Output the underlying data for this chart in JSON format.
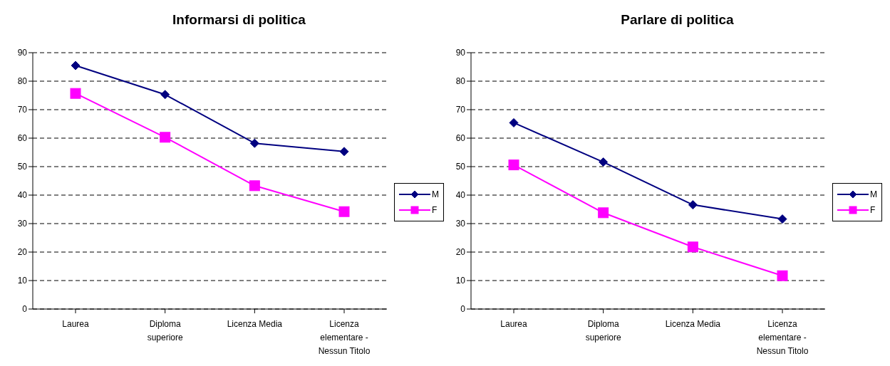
{
  "chart_data": [
    {
      "type": "line",
      "title": "Informarsi di politica",
      "categories": [
        "Laurea",
        "Diploma superiore",
        "Licenza Media",
        "Licenza elementare - Nessun Titolo"
      ],
      "series": [
        {
          "name": "M",
          "color": "#000080",
          "marker": "diamond",
          "values": [
            85.5,
            75.3,
            58.2,
            55.3
          ]
        },
        {
          "name": "F",
          "color": "#ff00ff",
          "marker": "square",
          "values": [
            75.7,
            60.3,
            43.3,
            34.2
          ]
        }
      ],
      "ylim": [
        0,
        90
      ],
      "yticks": [
        0,
        10,
        20,
        30,
        40,
        50,
        60,
        70,
        80,
        90
      ],
      "grid": "y",
      "legend": "right"
    },
    {
      "type": "line",
      "title": "Parlare di politica",
      "categories": [
        "Laurea",
        "Diploma superiore",
        "Licenza Media",
        "Licenza elementare - Nessun Titolo"
      ],
      "series": [
        {
          "name": "M",
          "color": "#000080",
          "marker": "diamond",
          "values": [
            65.4,
            51.6,
            36.6,
            31.6
          ]
        },
        {
          "name": "F",
          "color": "#ff00ff",
          "marker": "square",
          "values": [
            50.6,
            33.8,
            21.8,
            11.7
          ]
        }
      ],
      "ylim": [
        0,
        90
      ],
      "yticks": [
        0,
        10,
        20,
        30,
        40,
        50,
        60,
        70,
        80,
        90
      ],
      "grid": "y",
      "legend": "right"
    }
  ]
}
